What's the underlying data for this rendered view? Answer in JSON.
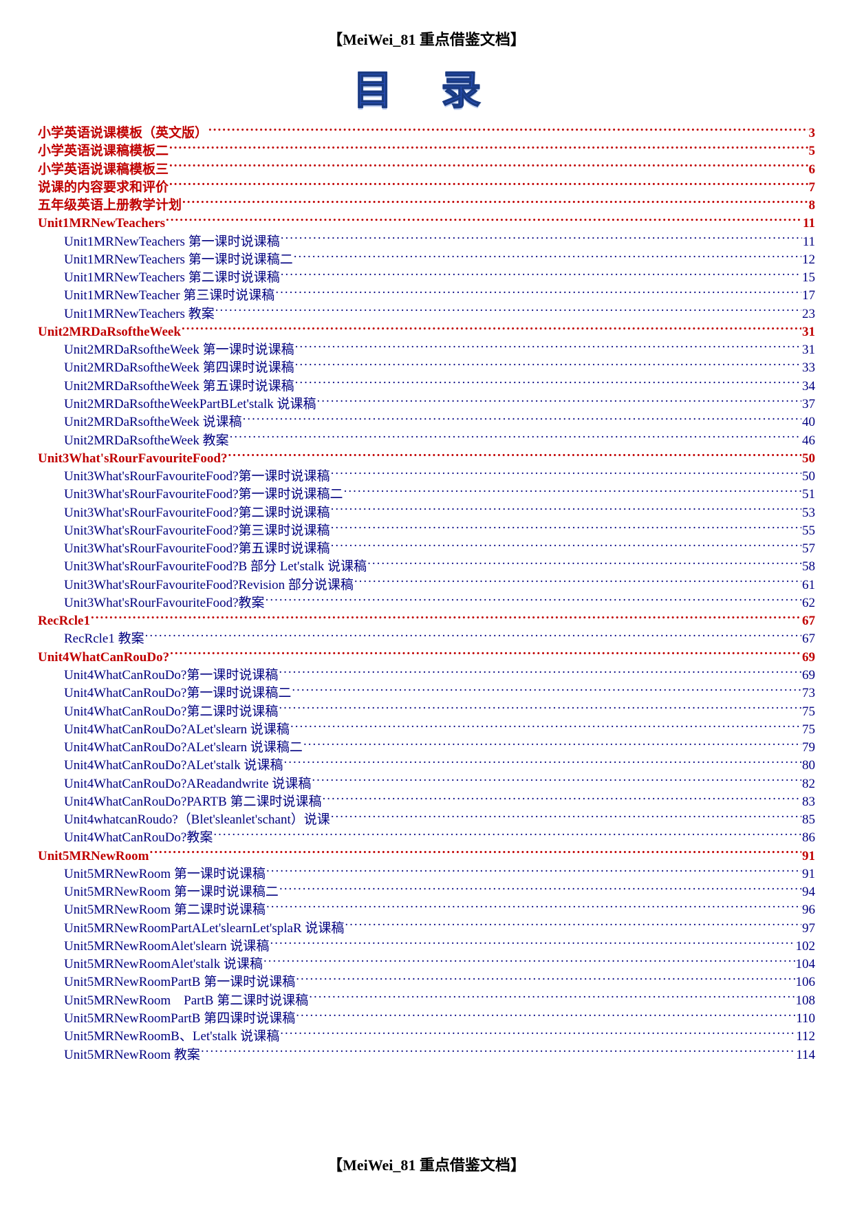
{
  "header": "【MeiWei_81 重点借鉴文档】",
  "title": "目 录",
  "footer": "【MeiWei_81 重点借鉴文档】",
  "colors": {
    "accent_red": "#c00000",
    "accent_blue": "#000080",
    "title_color": "#2850c0",
    "background": "#ffffff"
  },
  "toc": [
    {
      "label": "小学英语说课模板（英文版）",
      "page": "3",
      "level": 0,
      "color": "red"
    },
    {
      "label": "小学英语说课稿模板二",
      "page": "5",
      "level": 0,
      "color": "red"
    },
    {
      "label": "小学英语说课稿模板三",
      "page": "6",
      "level": 0,
      "color": "red"
    },
    {
      "label": "说课的内容要求和评价",
      "page": "7",
      "level": 0,
      "color": "red"
    },
    {
      "label": "五年级英语上册教学计划",
      "page": "8",
      "level": 0,
      "color": "red"
    },
    {
      "label": "Unit1MRNewTeachers",
      "page": "11",
      "level": 0,
      "color": "red"
    },
    {
      "label": "Unit1MRNewTeachers 第一课时说课稿",
      "page": "11",
      "level": 1,
      "color": "blue"
    },
    {
      "label": "Unit1MRNewTeachers 第一课时说课稿二",
      "page": "12",
      "level": 1,
      "color": "blue"
    },
    {
      "label": "Unit1MRNewTeachers 第二课时说课稿",
      "page": "15",
      "level": 1,
      "color": "blue"
    },
    {
      "label": "Unit1MRNewTeacher 第三课时说课稿",
      "page": "17",
      "level": 1,
      "color": "blue"
    },
    {
      "label": "Unit1MRNewTeachers 教案",
      "page": "23",
      "level": 1,
      "color": "blue"
    },
    {
      "label": "Unit2MRDaRsoftheWeek",
      "page": "31",
      "level": 0,
      "color": "red"
    },
    {
      "label": "Unit2MRDaRsoftheWeek 第一课时说课稿",
      "page": "31",
      "level": 1,
      "color": "blue"
    },
    {
      "label": "Unit2MRDaRsoftheWeek 第四课时说课稿",
      "page": "33",
      "level": 1,
      "color": "blue"
    },
    {
      "label": "Unit2MRDaRsoftheWeek 第五课时说课稿",
      "page": "34",
      "level": 1,
      "color": "blue"
    },
    {
      "label": "Unit2MRDaRsoftheWeekPartBLet'stalk 说课稿",
      "page": "37",
      "level": 1,
      "color": "blue"
    },
    {
      "label": "Unit2MRDaRsoftheWeek 说课稿",
      "page": "40",
      "level": 1,
      "color": "blue"
    },
    {
      "label": "Unit2MRDaRsoftheWeek 教案",
      "page": "46",
      "level": 1,
      "color": "blue"
    },
    {
      "label": "Unit3What'sRourFavouriteFood?",
      "page": "50",
      "level": 0,
      "color": "red"
    },
    {
      "label": "Unit3What'sRourFavouriteFood?第一课时说课稿",
      "page": "50",
      "level": 1,
      "color": "blue"
    },
    {
      "label": "Unit3What'sRourFavouriteFood?第一课时说课稿二",
      "page": "51",
      "level": 1,
      "color": "blue"
    },
    {
      "label": "Unit3What'sRourFavouriteFood?第二课时说课稿",
      "page": "53",
      "level": 1,
      "color": "blue"
    },
    {
      "label": "Unit3What'sRourFavouriteFood?第三课时说课稿",
      "page": "55",
      "level": 1,
      "color": "blue"
    },
    {
      "label": "Unit3What'sRourFavouriteFood?第五课时说课稿",
      "page": "57",
      "level": 1,
      "color": "blue"
    },
    {
      "label": "Unit3What'sRourFavouriteFood?B 部分 Let'stalk 说课稿",
      "page": "58",
      "level": 1,
      "color": "blue"
    },
    {
      "label": "Unit3What'sRourFavouriteFood?Revision 部分说课稿",
      "page": "61",
      "level": 1,
      "color": "blue"
    },
    {
      "label": "Unit3What'sRourFavouriteFood?教案",
      "page": "62",
      "level": 1,
      "color": "blue"
    },
    {
      "label": "RecRcle1",
      "page": "67",
      "level": 0,
      "color": "red"
    },
    {
      "label": "RecRcle1 教案",
      "page": "67",
      "level": 1,
      "color": "blue"
    },
    {
      "label": "Unit4WhatCanRouDo?",
      "page": "69",
      "level": 0,
      "color": "red"
    },
    {
      "label": "Unit4WhatCanRouDo?第一课时说课稿",
      "page": "69",
      "level": 1,
      "color": "blue"
    },
    {
      "label": "Unit4WhatCanRouDo?第一课时说课稿二",
      "page": "73",
      "level": 1,
      "color": "blue"
    },
    {
      "label": "Unit4WhatCanRouDo?第二课时说课稿",
      "page": "75",
      "level": 1,
      "color": "blue"
    },
    {
      "label": "Unit4WhatCanRouDo?ALet'slearn 说课稿",
      "page": "75",
      "level": 1,
      "color": "blue"
    },
    {
      "label": "Unit4WhatCanRouDo?ALet'slearn 说课稿二",
      "page": "79",
      "level": 1,
      "color": "blue"
    },
    {
      "label": "Unit4WhatCanRouDo?ALet'stalk 说课稿",
      "page": "80",
      "level": 1,
      "color": "blue"
    },
    {
      "label": "Unit4WhatCanRouDo?AReadandwrite 说课稿",
      "page": "82",
      "level": 1,
      "color": "blue"
    },
    {
      "label": "Unit4WhatCanRouDo?PARTB 第二课时说课稿",
      "page": "83",
      "level": 1,
      "color": "blue"
    },
    {
      "label": "Unit4whatcanRoudo?（Blet'sleanlet'schant）说课",
      "page": "85",
      "level": 1,
      "color": "blue"
    },
    {
      "label": "Unit4WhatCanRouDo?教案",
      "page": "86",
      "level": 1,
      "color": "blue"
    },
    {
      "label": "Unit5MRNewRoom",
      "page": "91",
      "level": 0,
      "color": "red"
    },
    {
      "label": "Unit5MRNewRoom 第一课时说课稿",
      "page": "91",
      "level": 1,
      "color": "blue"
    },
    {
      "label": "Unit5MRNewRoom 第一课时说课稿二",
      "page": "94",
      "level": 1,
      "color": "blue"
    },
    {
      "label": "Unit5MRNewRoom 第二课时说课稿",
      "page": "96",
      "level": 1,
      "color": "blue"
    },
    {
      "label": "Unit5MRNewRoomPartALet'slearnLet'splaR 说课稿",
      "page": "97",
      "level": 1,
      "color": "blue"
    },
    {
      "label": "Unit5MRNewRoomAlet'slearn 说课稿",
      "page": "102",
      "level": 1,
      "color": "blue"
    },
    {
      "label": "Unit5MRNewRoomAlet'stalk 说课稿",
      "page": "104",
      "level": 1,
      "color": "blue"
    },
    {
      "label": "Unit5MRNewRoomPartB 第一课时说课稿",
      "page": "106",
      "level": 1,
      "color": "blue"
    },
    {
      "label": "Unit5MRNewRoom　PartB 第二课时说课稿",
      "page": "108",
      "level": 1,
      "color": "blue"
    },
    {
      "label": "Unit5MRNewRoomPartB 第四课时说课稿",
      "page": "110",
      "level": 1,
      "color": "blue"
    },
    {
      "label": "Unit5MRNewRoomB、Let'stalk 说课稿",
      "page": "112",
      "level": 1,
      "color": "blue"
    },
    {
      "label": "Unit5MRNewRoom 教案",
      "page": "114",
      "level": 1,
      "color": "blue"
    }
  ]
}
